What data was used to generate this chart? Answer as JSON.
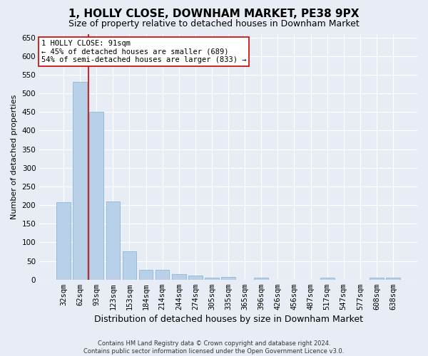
{
  "title": "1, HOLLY CLOSE, DOWNHAM MARKET, PE38 9PX",
  "subtitle": "Size of property relative to detached houses in Downham Market",
  "xlabel": "Distribution of detached houses by size in Downham Market",
  "ylabel": "Number of detached properties",
  "footer_line1": "Contains HM Land Registry data © Crown copyright and database right 2024.",
  "footer_line2": "Contains public sector information licensed under the Open Government Licence v3.0.",
  "categories": [
    "32sqm",
    "62sqm",
    "93sqm",
    "123sqm",
    "153sqm",
    "184sqm",
    "214sqm",
    "244sqm",
    "274sqm",
    "305sqm",
    "335sqm",
    "365sqm",
    "396sqm",
    "426sqm",
    "456sqm",
    "487sqm",
    "517sqm",
    "547sqm",
    "577sqm",
    "608sqm",
    "638sqm"
  ],
  "values": [
    207,
    530,
    450,
    210,
    76,
    27,
    26,
    14,
    11,
    5,
    8,
    0,
    5,
    0,
    0,
    0,
    5,
    0,
    0,
    5,
    5
  ],
  "bar_color": "#b8d0e8",
  "bar_edge_color": "#7aafd4",
  "vline_x_index": 2,
  "vline_color": "#cc0000",
  "annotation_text": "1 HOLLY CLOSE: 91sqm\n← 45% of detached houses are smaller (689)\n54% of semi-detached houses are larger (833) →",
  "annotation_box_color": "#ffffff",
  "annotation_box_edge_color": "#cc0000",
  "ylim": [
    0,
    660
  ],
  "yticks": [
    0,
    50,
    100,
    150,
    200,
    250,
    300,
    350,
    400,
    450,
    500,
    550,
    600,
    650
  ],
  "background_color": "#e8edf5",
  "plot_background_color": "#e8edf5",
  "title_fontsize": 11,
  "subtitle_fontsize": 9,
  "xlabel_fontsize": 9,
  "ylabel_fontsize": 8,
  "tick_fontsize": 7.5,
  "annotation_fontsize": 7.5,
  "footer_fontsize": 6
}
